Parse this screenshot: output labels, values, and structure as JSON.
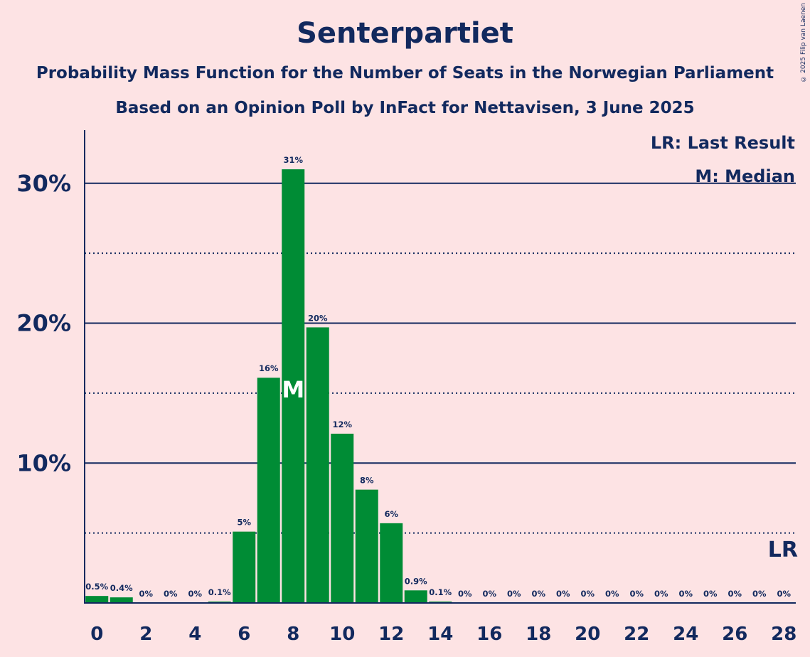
{
  "copyright": "© 2025 Filip van Laenen",
  "chart_data": {
    "type": "bar",
    "title": "Senterpartiet",
    "subtitle": "Probability Mass Function for the Number of Seats in the Norwegian Parliament",
    "subtitle2": "Based on an Opinion Poll by InFact for Nettavisen, 3 June 2025",
    "xlabel": "",
    "ylabel": "",
    "x": [
      0,
      1,
      2,
      3,
      4,
      5,
      6,
      7,
      8,
      9,
      10,
      11,
      12,
      13,
      14,
      15,
      16,
      17,
      18,
      19,
      20,
      21,
      22,
      23,
      24,
      25,
      26,
      27,
      28
    ],
    "values": [
      0.5,
      0.4,
      0,
      0,
      0,
      0.1,
      5.1,
      16.1,
      31.0,
      19.7,
      12.1,
      8.1,
      5.7,
      0.9,
      0.1,
      0,
      0,
      0,
      0,
      0,
      0,
      0,
      0,
      0,
      0,
      0,
      0,
      0,
      0
    ],
    "value_labels": [
      "0.5%",
      "0.4%",
      "0%",
      "0%",
      "0%",
      "0.1%",
      "5%",
      "16%",
      "31%",
      "20%",
      "12%",
      "8%",
      "6%",
      "0.9%",
      "0.1%",
      "0%",
      "0%",
      "0%",
      "0%",
      "0%",
      "0%",
      "0%",
      "0%",
      "0%",
      "0%",
      "0%",
      "0%",
      "0%",
      "0%"
    ],
    "x_tick_labels": [
      "0",
      "2",
      "4",
      "6",
      "8",
      "10",
      "12",
      "14",
      "16",
      "18",
      "20",
      "22",
      "24",
      "26",
      "28"
    ],
    "y_ticks": [
      10,
      20,
      30
    ],
    "y_tick_labels": [
      "10%",
      "20%",
      "30%"
    ],
    "y_minor_ticks": [
      5,
      15,
      25
    ],
    "ylim": [
      0,
      33.8
    ],
    "xlim": [
      0,
      28
    ],
    "bar_color": "#008C35",
    "text_color": "#12295E",
    "background": "#FDE3E4",
    "median": 8,
    "median_mark": "M",
    "last_result": 28,
    "last_result_mark": "LR",
    "legend": [
      "LR: Last Result",
      "M: Median"
    ],
    "legend_position": "top-right",
    "grid": "horizontal"
  }
}
